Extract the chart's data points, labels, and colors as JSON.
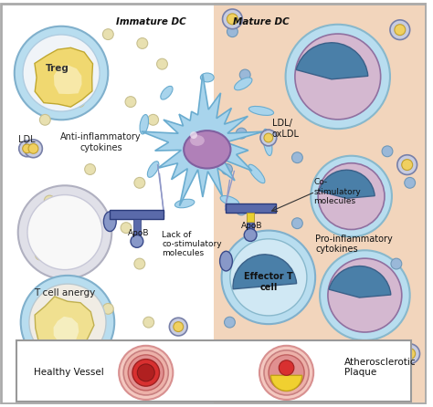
{
  "background_left": "#ffffff",
  "background_right": "#f2d5bc",
  "title_left": "Immature DC",
  "title_right": "Mature DC",
  "label_healthy": "Healthy Vessel",
  "label_athero": "Atherosclerotic\nPlaque",
  "label_treg": "Treg",
  "label_ldl": "LDL",
  "label_anti_inflam": "Anti-inflammatory\ncytokines",
  "label_apob_left": "ApoB",
  "label_lack": "Lack of\nco-stimulatory\nmolecules",
  "label_t_anergy": "T cell anergy",
  "label_ldl_ox": "LDL/\noxLDL",
  "label_costim": "Co-\nstimulatory\nmolecules",
  "label_apob_right": "ApoB",
  "label_pro_inflam": "Pro-inflammatory\ncytokines",
  "label_effector": "Effector T\ncell",
  "cell_blue_light": "#b8ddef",
  "cell_blue_mid": "#7ab8d4",
  "cell_blue_dark": "#4a7fa8",
  "cell_purple_light": "#d4b8d0",
  "cell_purple": "#b090b8",
  "cell_yellow": "#f0d060",
  "cell_yellow_light": "#faeaa0",
  "cell_orange_light": "#f8e0b0",
  "cell_white": "#f8f8f8",
  "cell_gray": "#d0d0d8",
  "cell_gray2": "#e0e0e8",
  "dc_body": "#a8d4ec",
  "dc_nucleus": "#b888b8",
  "connector_dark": "#3a4a8a",
  "connector_mid": "#5a6aaa",
  "connector_light": "#9098c8",
  "small_dot_color": "#e8e0b0",
  "small_dot_ec": "#c8c090",
  "pro_inflam_dot": "#9ab8d8",
  "pro_inflam_ec": "#7098b8",
  "vessel_wall": "#f0c0b8",
  "vessel_wall2": "#e8a090",
  "vessel_red": "#d83030",
  "vessel_dark_red": "#b02020",
  "vessel_lipid": "#f0d040",
  "figsize": [
    4.74,
    4.46
  ],
  "dpi": 100
}
